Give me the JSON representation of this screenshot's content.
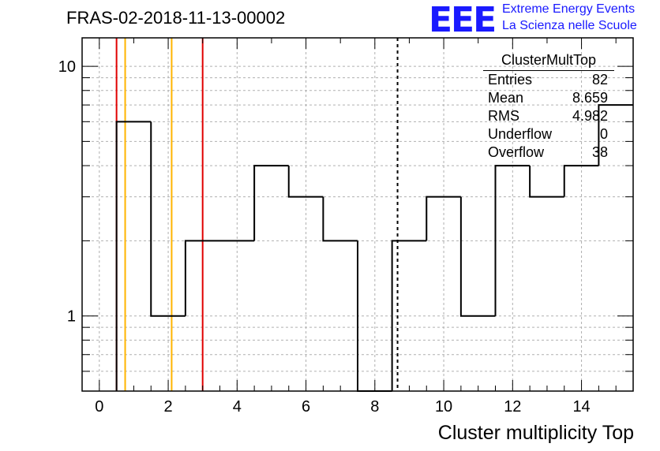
{
  "header": {
    "run_title": "FRAS-02-2018-11-13-00002",
    "logo_letters": "EEE",
    "logo_line1": "Extreme Energy Events",
    "logo_line2": "La Scienza nelle Scuole"
  },
  "stats_box": {
    "title": "ClusterMultTop",
    "rows": [
      {
        "label": "Entries",
        "value": "82"
      },
      {
        "label": "Mean",
        "value": "8.659"
      },
      {
        "label": "RMS",
        "value": "4.982"
      },
      {
        "label": "Underflow",
        "value": "0"
      },
      {
        "label": "Overflow",
        "value": "38"
      }
    ]
  },
  "chart_data": {
    "type": "histogram",
    "title": "FRAS-02-2018-11-13-00002",
    "xlabel": "Cluster multiplicity Top",
    "ylabel": "",
    "y_scale": "log",
    "xlim": [
      -0.5,
      15.5
    ],
    "ylim": [
      0.5,
      13
    ],
    "grid": true,
    "x_ticks": [
      0,
      2,
      4,
      6,
      8,
      10,
      12,
      14
    ],
    "y_tick_labels": [
      {
        "value": 1,
        "label": "1"
      },
      {
        "value": 10,
        "label": "10"
      }
    ],
    "bin_edges": [
      0.5,
      1.5,
      2.5,
      3.5,
      4.5,
      5.5,
      6.5,
      7.5,
      8.5,
      9.5,
      10.5,
      11.5,
      12.5,
      13.5,
      14.5,
      15.5
    ],
    "counts": [
      6,
      1,
      2,
      2,
      4,
      3,
      2,
      0,
      2,
      3,
      1,
      4,
      3,
      4,
      7
    ],
    "vertical_lines": [
      {
        "x": 0.5,
        "color": "#e00000",
        "style": "solid"
      },
      {
        "x": 0.75,
        "color": "#ffb400",
        "style": "solid"
      },
      {
        "x": 2.1,
        "color": "#ffb400",
        "style": "solid"
      },
      {
        "x": 3.0,
        "color": "#e00000",
        "style": "solid"
      },
      {
        "x": 8.659,
        "color": "#000000",
        "style": "dashed"
      }
    ],
    "colors": {
      "line": "#000000",
      "grid": "#b0b0b0",
      "logo": "#1a1aff"
    }
  }
}
